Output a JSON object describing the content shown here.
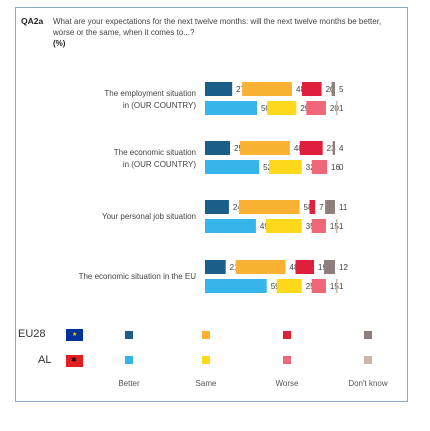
{
  "header": {
    "code": "QA2a",
    "question": "What are your expectations for the next twelve months: will the next twelve months be better, worse or the same, when it comes to...?",
    "unit": "(%)"
  },
  "chart_data": {
    "type": "bar",
    "stacked": true,
    "orientation": "horizontal",
    "categories": [
      [
        "The employment situation",
        "in (OUR COUNTRY)"
      ],
      [
        "The economic situation",
        "in (OUR COUNTRY)"
      ],
      [
        "Your personal job situation"
      ],
      [
        "The economic situation in the EU"
      ]
    ],
    "groups": [
      "EU28",
      "AL"
    ],
    "answers": [
      "Better",
      "Same",
      "Worse",
      "Don't know"
    ],
    "series": [
      {
        "group": "EU28",
        "values": [
          [
            27,
            48,
            20,
            5
          ],
          [
            25,
            48,
            23,
            4
          ],
          [
            24,
            58,
            7,
            11
          ],
          [
            21,
            48,
            19,
            12
          ]
        ],
        "colors": [
          "#1b5e8a",
          "#f9b233",
          "#e01f3d",
          "#8c7f7c"
        ]
      },
      {
        "group": "AL",
        "values": [
          [
            50,
            29,
            20,
            1
          ],
          [
            52,
            32,
            16,
            0
          ],
          [
            49,
            35,
            15,
            1
          ],
          [
            59,
            25,
            15,
            1
          ]
        ],
        "colors": [
          "#35b5e9",
          "#fdd81b",
          "#f0677a",
          "#c9b8ae"
        ]
      }
    ],
    "legend": {
      "countries": [
        "EU28",
        "AL"
      ],
      "labels": [
        "Better",
        "Same",
        "Worse",
        "Don't know"
      ]
    }
  }
}
